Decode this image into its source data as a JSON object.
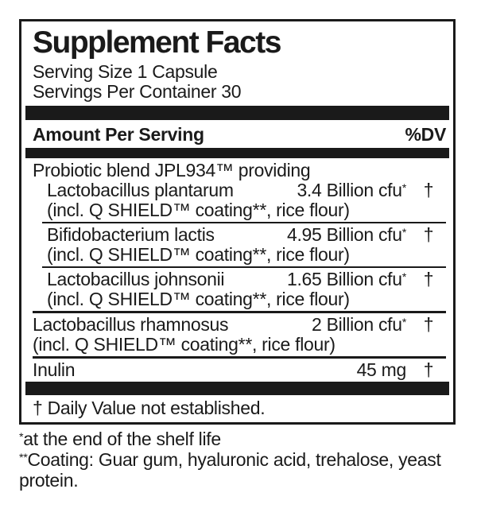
{
  "colors": {
    "ink": "#1a1a1a",
    "background": "#ffffff"
  },
  "supplement_facts": {
    "title": "Supplement Facts",
    "serving_size": "Serving Size 1 Capsule",
    "servings_per_container": "Servings Per Container 30",
    "header": {
      "amount_label": "Amount Per Serving",
      "dv_label": "%DV"
    },
    "rows": [
      {
        "kind": "group-header",
        "name": "Probiotic blend JPL934™ providing",
        "amount": "",
        "mark": "",
        "dv": "",
        "note": ""
      },
      {
        "kind": "sub",
        "name": "Lactobacillus plantarum",
        "amount": "3.4 Billion cfu",
        "mark": "*",
        "dv": "†",
        "note": "(incl. Q SHIELD™ coating**, rice flour)"
      },
      {
        "kind": "sub",
        "name": "Bifidobacterium lactis",
        "amount": "4.95 Billion cfu",
        "mark": "*",
        "dv": "†",
        "note": "(incl. Q SHIELD™ coating**, rice flour)"
      },
      {
        "kind": "sub",
        "name": "Lactobacillus johnsonii",
        "amount": "1.65 Billion cfu",
        "mark": "*",
        "dv": "†",
        "note": "(incl. Q SHIELD™ coating**, rice flour)"
      },
      {
        "kind": "main",
        "name": "Lactobacillus rhamnosus",
        "amount": "2 Billion cfu",
        "mark": "*",
        "dv": "†",
        "note": "(incl. Q SHIELD™ coating**, rice flour)"
      },
      {
        "kind": "main",
        "name": "Inulin",
        "amount": "45 mg",
        "mark": "",
        "dv": "†",
        "note": ""
      }
    ],
    "dv_footnote": "† Daily Value not established."
  },
  "footnotes": [
    {
      "mark": "*",
      "text": "at the end of the shelf life"
    },
    {
      "mark": "**",
      "text": "Coating: Guar gum, hyaluronic acid, trehalose, yeast protein."
    }
  ]
}
